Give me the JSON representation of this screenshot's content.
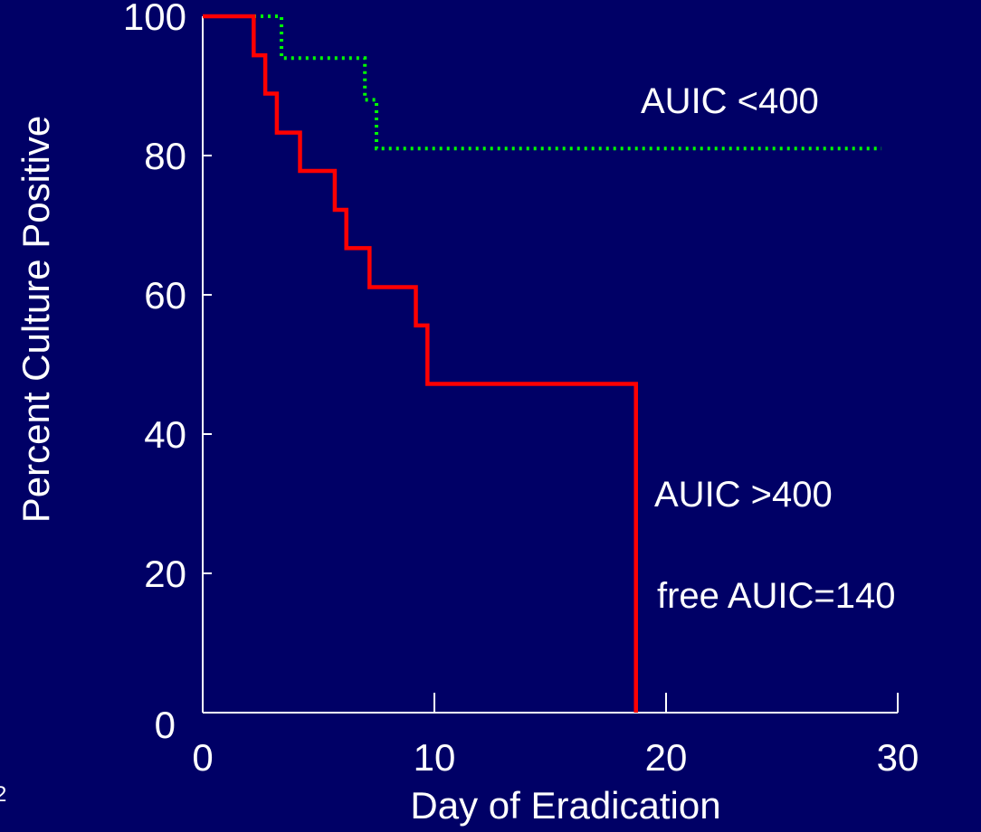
{
  "chart_data": {
    "type": "line",
    "xlabel": "Day of Eradication",
    "ylabel": "Percent Culture Positive",
    "xlim": [
      0,
      30
    ],
    "ylim": [
      0,
      100
    ],
    "x_ticks": [
      0,
      10,
      20,
      30
    ],
    "y_ticks": [
      0,
      20,
      40,
      60,
      80,
      100
    ],
    "grid": false,
    "step": true,
    "series": [
      {
        "name": "AUIC <400",
        "color": "#00ff00",
        "style": "dotted",
        "x": [
          0,
          3.4,
          7.0,
          7.5,
          29.3
        ],
        "y": [
          100,
          94,
          88,
          81,
          81
        ]
      },
      {
        "name": "AUIC >400",
        "color": "#ff0000",
        "style": "solid",
        "x": [
          0,
          2.2,
          2.7,
          3.2,
          4.2,
          5.7,
          6.2,
          7.2,
          9.2,
          9.7,
          18.7
        ],
        "y": [
          100,
          94.4,
          88.9,
          83.3,
          77.8,
          72.2,
          66.7,
          61.1,
          55.6,
          47.2,
          0
        ]
      }
    ],
    "annotations": [
      {
        "text": "AUIC <400",
        "series": 0
      },
      {
        "text": "AUIC >400",
        "series": 1
      },
      {
        "text": "free AUIC=140",
        "series": 1
      }
    ],
    "corner_text": "2"
  }
}
